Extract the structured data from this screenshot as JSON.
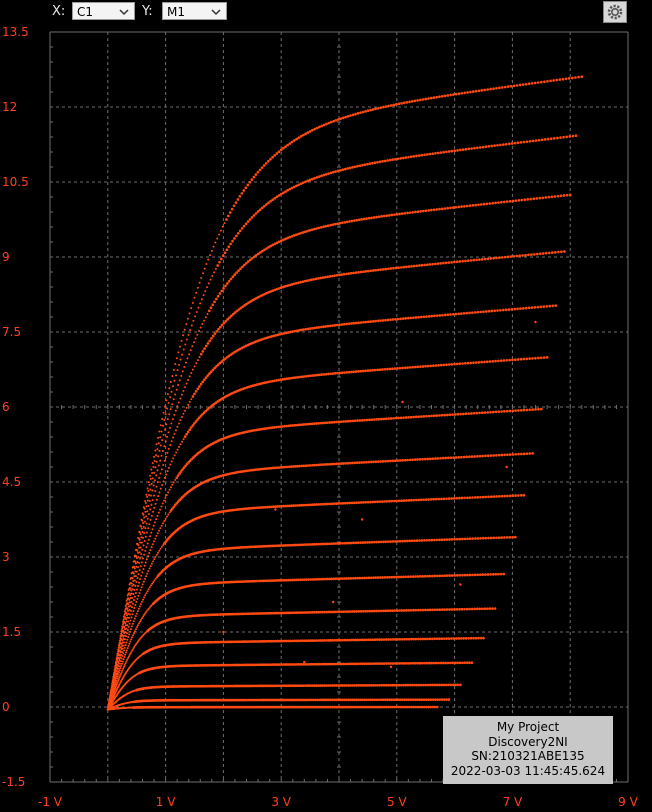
{
  "toolbar": {
    "x_label": "X:",
    "x_select": "C1",
    "y_label": "Y:",
    "y_select": "M1",
    "settings_icon": "gear-icon"
  },
  "info_box": {
    "project": "My Project",
    "device": "Discovery2NI",
    "serial": "SN:210321ABE135",
    "timestamp": "2022-03-03 11:45:45.624"
  },
  "colors": {
    "trace": "#ff4a12",
    "grid": "#6e6e6e",
    "background": "#000000",
    "axis_text": "#ff4020"
  },
  "chart_data": {
    "type": "scatter",
    "y_unit": "mA",
    "xlim": [
      -1,
      9
    ],
    "ylim": [
      -1.5,
      13.5
    ],
    "x_ticks": [
      "-1 V",
      "1 V",
      "3 V",
      "5 V",
      "7 V",
      "9 V"
    ],
    "x_tick_values": [
      -1,
      1,
      3,
      5,
      7,
      9
    ],
    "y_ticks": [
      "13.5",
      "12",
      "10.5",
      "9",
      "7.5",
      "6",
      "4.5",
      "3",
      "1.5",
      "0",
      "-1.5"
    ],
    "y_tick_values": [
      13.5,
      12,
      10.5,
      9,
      7.5,
      6,
      4.5,
      3,
      1.5,
      0,
      -1.5
    ],
    "grid": true,
    "series": [
      {
        "end_x": 8.2,
        "end_y": 12.85
      },
      {
        "end_x": 8.1,
        "end_y": 11.65
      },
      {
        "end_x": 8.0,
        "end_y": 10.45
      },
      {
        "end_x": 7.9,
        "end_y": 9.3
      },
      {
        "end_x": 7.75,
        "end_y": 8.2
      },
      {
        "end_x": 7.6,
        "end_y": 7.15
      },
      {
        "end_x": 7.5,
        "end_y": 6.1
      },
      {
        "end_x": 7.35,
        "end_y": 5.2
      },
      {
        "end_x": 7.2,
        "end_y": 4.35
      },
      {
        "end_x": 7.05,
        "end_y": 3.5
      },
      {
        "end_x": 6.85,
        "end_y": 2.75
      },
      {
        "end_x": 6.7,
        "end_y": 2.05
      },
      {
        "end_x": 6.5,
        "end_y": 1.45
      },
      {
        "end_x": 6.3,
        "end_y": 0.95
      },
      {
        "end_x": 6.1,
        "end_y": 0.5
      },
      {
        "end_x": 5.9,
        "end_y": 0.2
      },
      {
        "end_x": 5.7,
        "end_y": 0.05
      }
    ],
    "outliers": [
      [
        5.1,
        6.1
      ],
      [
        7.4,
        7.7
      ],
      [
        6.9,
        4.8
      ],
      [
        4.4,
        3.75
      ],
      [
        2.9,
        3.95
      ],
      [
        3.9,
        2.1
      ],
      [
        6.1,
        2.45
      ],
      [
        4.9,
        0.8
      ],
      [
        3.4,
        0.9
      ],
      [
        2.0,
        1.5
      ]
    ]
  }
}
